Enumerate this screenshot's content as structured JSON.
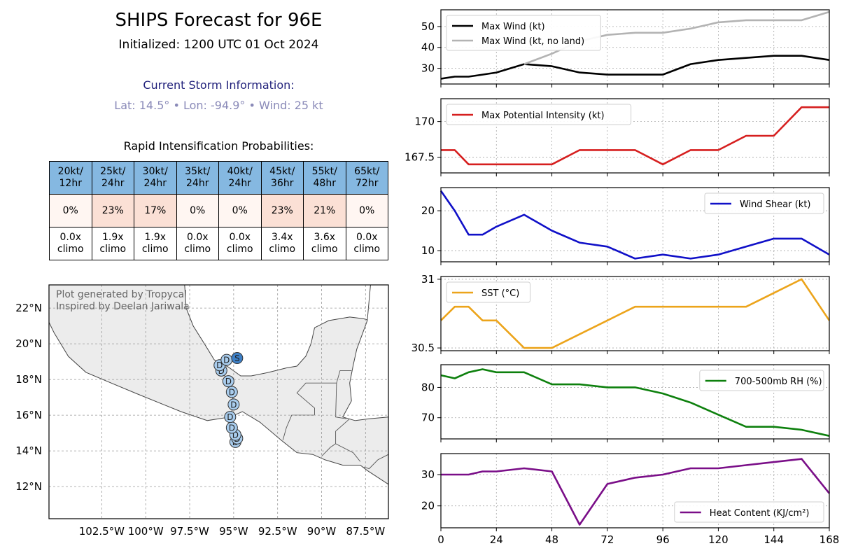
{
  "header": {
    "title": "SHIPS Forecast for 96E",
    "initialized": "Initialized: 1200 UTC 01 Oct 2024"
  },
  "storm": {
    "heading": "Current Storm Information:",
    "info": "Lat: 14.5° • Lon: -94.9° • Wind: 25 kt"
  },
  "ri": {
    "title": "Rapid Intensification Probabilities:",
    "columns": [
      {
        "l1": "20kt/",
        "l2": "12hr",
        "prob": "0%",
        "c1": "0.0x",
        "c2": "climo",
        "color": "#fff6f2"
      },
      {
        "l1": "25kt/",
        "l2": "24hr",
        "prob": "23%",
        "c1": "1.9x",
        "c2": "climo",
        "color": "#fbe0d5"
      },
      {
        "l1": "30kt/",
        "l2": "24hr",
        "prob": "17%",
        "c1": "1.9x",
        "c2": "climo",
        "color": "#fbe0d5"
      },
      {
        "l1": "35kt/",
        "l2": "24hr",
        "prob": "0%",
        "c1": "0.0x",
        "c2": "climo",
        "color": "#fff6f2"
      },
      {
        "l1": "40kt/",
        "l2": "24hr",
        "prob": "0%",
        "c1": "0.0x",
        "c2": "climo",
        "color": "#fff6f2"
      },
      {
        "l1": "45kt/",
        "l2": "36hr",
        "prob": "23%",
        "c1": "3.4x",
        "c2": "climo",
        "color": "#fbe0d5"
      },
      {
        "l1": "55kt/",
        "l2": "48hr",
        "prob": "21%",
        "c1": "3.6x",
        "c2": "climo",
        "color": "#fbe0d5"
      },
      {
        "l1": "65kt/",
        "l2": "72hr",
        "prob": "0%",
        "c1": "0.0x",
        "c2": "climo",
        "color": "#fff6f2"
      }
    ]
  },
  "map": {
    "credit1": "Plot generated by Tropycal",
    "credit2": "Inspired by Deelan Jariwala",
    "lon_labels": [
      "102.5°W",
      "100°W",
      "97.5°W",
      "95°W",
      "92.5°W",
      "90°W",
      "87.5°W"
    ],
    "lat_labels": [
      "22°N",
      "20°N",
      "18°N",
      "16°N",
      "14°N",
      "12°N"
    ],
    "track": [
      {
        "lat": 14.5,
        "lon": -94.9,
        "t": "D"
      },
      {
        "lat": 14.7,
        "lon": -94.8,
        "t": "D"
      },
      {
        "lat": 14.9,
        "lon": -94.9,
        "t": "D"
      },
      {
        "lat": 15.3,
        "lon": -95.1,
        "t": "D"
      },
      {
        "lat": 15.9,
        "lon": -95.2,
        "t": "D"
      },
      {
        "lat": 16.6,
        "lon": -95.0,
        "t": "D"
      },
      {
        "lat": 17.3,
        "lon": -95.1,
        "t": "D"
      },
      {
        "lat": 17.9,
        "lon": -95.3,
        "t": "D"
      },
      {
        "lat": 18.5,
        "lon": -95.7,
        "t": "D"
      },
      {
        "lat": 18.8,
        "lon": -95.8,
        "t": "D"
      },
      {
        "lat": 19.1,
        "lon": -95.4,
        "t": "D"
      },
      {
        "lat": 19.2,
        "lon": -94.8,
        "t": "S"
      }
    ]
  },
  "chart_data": [
    {
      "type": "line",
      "name": "max-wind",
      "x": [
        0,
        6,
        12,
        18,
        24,
        36,
        48,
        60,
        72,
        84,
        96,
        108,
        120,
        132,
        144,
        156,
        168
      ],
      "series": [
        {
          "name": "Max Wind (kt)",
          "color": "#000000",
          "values": [
            25,
            26,
            26,
            27,
            28,
            32,
            31,
            28,
            27,
            27,
            27,
            32,
            34,
            35,
            36,
            36,
            34
          ]
        },
        {
          "name": "Max Wind (kt, no land)",
          "color": "#b3b3b3",
          "values": [
            null,
            null,
            null,
            null,
            null,
            32,
            37,
            43,
            46,
            47,
            47,
            49,
            52,
            53,
            53,
            53,
            57
          ]
        }
      ],
      "ylim": [
        22.5,
        58
      ],
      "yticks": [
        30,
        40,
        50
      ],
      "legend": "top-left"
    },
    {
      "type": "line",
      "name": "max-potential-intensity",
      "x": [
        0,
        6,
        12,
        18,
        24,
        36,
        48,
        60,
        72,
        84,
        96,
        108,
        120,
        132,
        144,
        156,
        168
      ],
      "series": [
        {
          "name": "Max Potential Intensity (kt)",
          "color": "#d61f1f",
          "values": [
            168,
            168,
            167,
            167,
            167,
            167,
            167,
            168,
            168,
            168,
            167,
            168,
            168,
            169,
            169,
            171,
            171
          ]
        }
      ],
      "ylim": [
        166.4,
        171.6
      ],
      "yticks": [
        167.5,
        170.0
      ],
      "legend": "top-left"
    },
    {
      "type": "line",
      "name": "wind-shear",
      "x": [
        0,
        6,
        12,
        18,
        24,
        36,
        48,
        60,
        72,
        84,
        96,
        108,
        120,
        132,
        144,
        156,
        168
      ],
      "series": [
        {
          "name": "Wind Shear (kt)",
          "color": "#1010c8",
          "values": [
            25,
            20,
            14,
            14,
            16,
            19,
            15,
            12,
            11,
            8,
            9,
            8,
            9,
            11,
            13,
            13,
            9
          ]
        }
      ],
      "ylim": [
        7.2,
        25.8
      ],
      "yticks": [
        10,
        20
      ],
      "legend": "top-right"
    },
    {
      "type": "line",
      "name": "sst",
      "x": [
        0,
        6,
        12,
        18,
        24,
        36,
        48,
        60,
        72,
        84,
        96,
        108,
        120,
        132,
        144,
        156,
        168
      ],
      "series": [
        {
          "name": "SST (°C)",
          "color": "#eca41b",
          "values": [
            30.7,
            30.8,
            30.8,
            30.7,
            30.7,
            30.5,
            30.5,
            30.6,
            30.7,
            30.8,
            30.8,
            30.8,
            30.8,
            30.8,
            30.9,
            31.0,
            30.7
          ]
        }
      ],
      "ylim": [
        30.48,
        31.02
      ],
      "yticks": [
        30.5,
        31.0
      ],
      "legend": "top-left"
    },
    {
      "type": "line",
      "name": "rh",
      "x": [
        0,
        6,
        12,
        18,
        24,
        36,
        48,
        60,
        72,
        84,
        96,
        108,
        120,
        132,
        144,
        156,
        168
      ],
      "series": [
        {
          "name": "700-500mb RH (%)",
          "color": "#0d800d",
          "values": [
            84,
            83,
            85,
            86,
            85,
            85,
            81,
            81,
            80,
            80,
            78,
            75,
            71,
            67,
            67,
            66,
            64
          ]
        }
      ],
      "ylim": [
        63,
        87.5
      ],
      "yticks": [
        70,
        80
      ],
      "legend": "top-right"
    },
    {
      "type": "line",
      "name": "heat-content",
      "x": [
        0,
        6,
        12,
        18,
        24,
        36,
        48,
        60,
        72,
        84,
        96,
        108,
        120,
        132,
        144,
        156,
        168
      ],
      "series": [
        {
          "name": "Heat Content (KJ/cm²)",
          "color": "#7a0e88",
          "values": [
            30,
            30,
            30,
            31,
            31,
            32,
            31,
            14,
            27,
            29,
            30,
            32,
            32,
            33,
            34,
            35,
            24
          ]
        }
      ],
      "ylim": [
        13,
        36.7
      ],
      "yticks": [
        20,
        30
      ],
      "legend": "bottom-right"
    }
  ],
  "x_axis": {
    "ticks": [
      0,
      24,
      48,
      72,
      96,
      120,
      144,
      168
    ]
  }
}
